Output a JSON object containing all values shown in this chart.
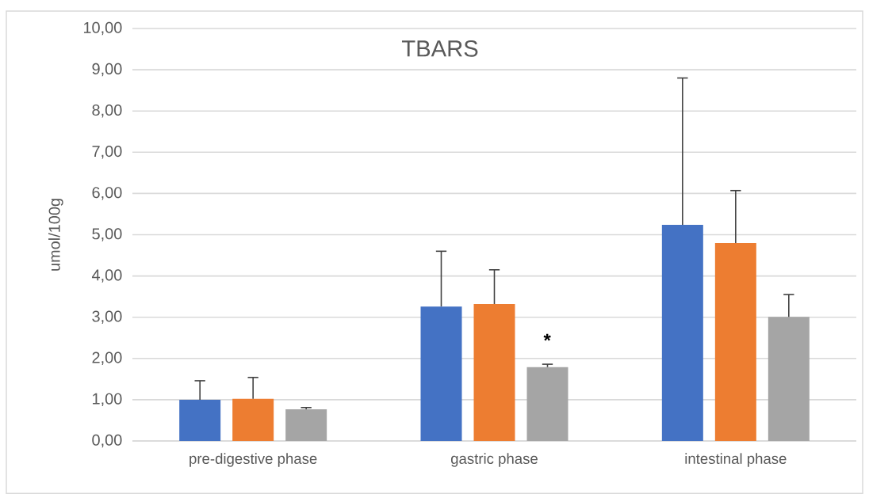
{
  "chart_data": {
    "type": "bar",
    "title": "TBARS",
    "ylabel": "umol/100g",
    "categories": [
      "pre-digestive phase",
      "gastric phase",
      "intestinal phase"
    ],
    "series": [
      {
        "color": "#4472c4",
        "values": [
          1.0,
          3.26,
          5.24
        ],
        "errors": [
          [
            1.0,
            1.46
          ],
          [
            3.26,
            4.6
          ],
          [
            5.24,
            8.8
          ]
        ]
      },
      {
        "color": "#ed7d31",
        "values": [
          1.02,
          3.32,
          4.8
        ],
        "errors": [
          [
            1.02,
            1.54
          ],
          [
            3.32,
            4.15
          ],
          [
            4.8,
            6.07
          ]
        ]
      },
      {
        "color": "#a5a5a5",
        "values": [
          0.77,
          1.79,
          3.01
        ],
        "errors": [
          [
            0.77,
            0.81
          ],
          [
            1.79,
            1.86
          ],
          [
            3.01,
            3.55
          ]
        ]
      }
    ],
    "ylim": [
      0,
      10
    ],
    "yticks": [
      {
        "value": 0,
        "label": "0,00"
      },
      {
        "value": 1,
        "label": "1,00"
      },
      {
        "value": 2,
        "label": "2,00"
      },
      {
        "value": 3,
        "label": "3,00"
      },
      {
        "value": 4,
        "label": "4,00"
      },
      {
        "value": 5,
        "label": "5,00"
      },
      {
        "value": 6,
        "label": "6,00"
      },
      {
        "value": 7,
        "label": "7,00"
      },
      {
        "value": 8,
        "label": "8,00"
      },
      {
        "value": 9,
        "label": "9,00"
      },
      {
        "value": 10,
        "label": "10,00"
      }
    ],
    "grid": "y",
    "legend": false,
    "annotations": [
      "*"
    ]
  }
}
